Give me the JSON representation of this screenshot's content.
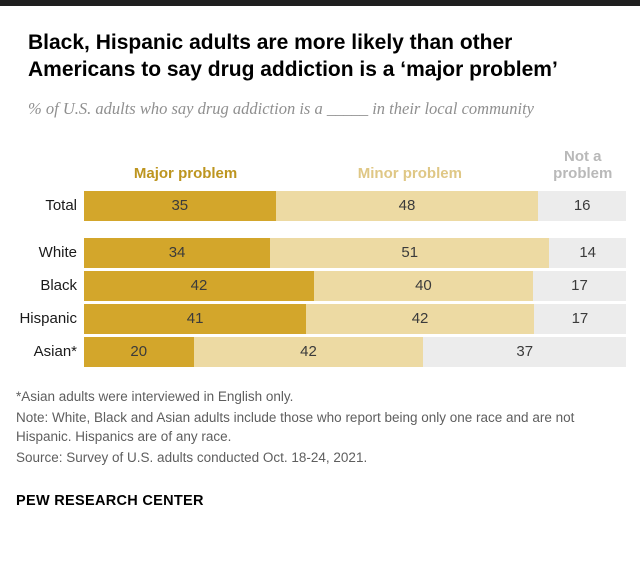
{
  "header": {
    "title": "Black, Hispanic adults are more likely than other Americans to say drug addiction is a ‘major problem’",
    "subtitle": "% of U.S. adults who say drug addiction is a _____ in their local community"
  },
  "chart_data": {
    "type": "bar",
    "orientation": "horizontal",
    "stacked": true,
    "unit": "%",
    "xlim": [
      0,
      100
    ],
    "grid": false,
    "legend_position": "top",
    "categories": [
      "Total",
      "White",
      "Black",
      "Hispanic",
      "Asian*"
    ],
    "series": [
      {
        "name": "Major problem",
        "color": "#d3a62b",
        "label_color": "#bd951f",
        "values": [
          35,
          34,
          42,
          41,
          20
        ]
      },
      {
        "name": "Minor problem",
        "color": "#eddaa3",
        "label_color": "#dfc785",
        "values": [
          48,
          51,
          40,
          42,
          42
        ]
      },
      {
        "name": "Not a problem",
        "color": "#ececec",
        "label_color": "#b9b9b9",
        "values": [
          16,
          14,
          17,
          17,
          37
        ]
      }
    ]
  },
  "notes": [
    "*Asian adults were interviewed in English only.",
    "Note: White, Black and Asian adults include those who report being only one race and are not Hispanic. Hispanics are of any race.",
    "Source: Survey of U.S. adults conducted Oct. 18-24, 2021."
  ],
  "footer": {
    "brand": "PEW RESEARCH CENTER"
  }
}
